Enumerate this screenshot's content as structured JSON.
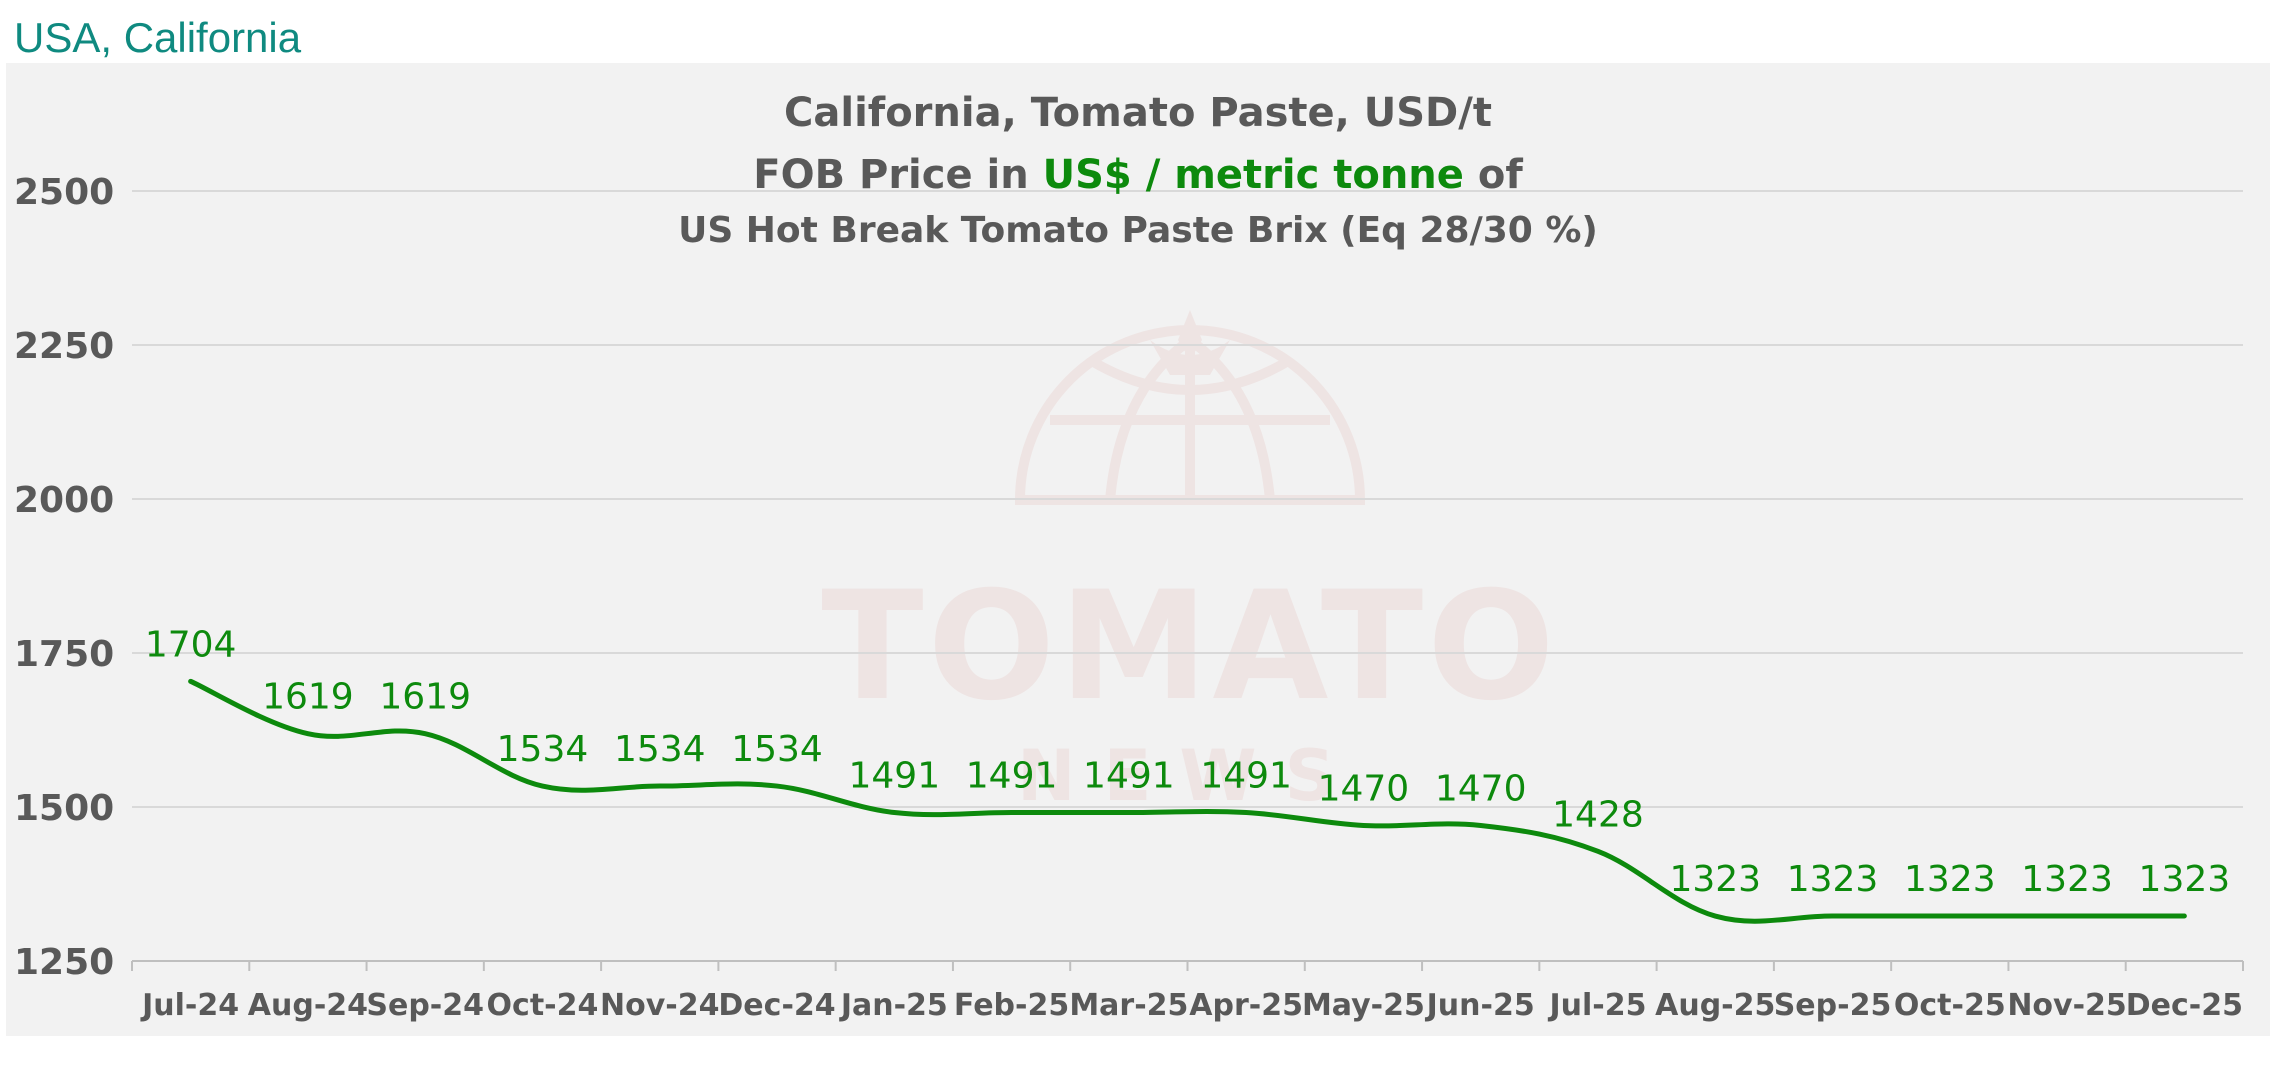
{
  "header": {
    "region": "USA, California"
  },
  "chart_title": {
    "line1": "California, Tomato Paste, USD/t",
    "line2_prefix": "FOB Price in ",
    "line2_highlight": "US$ / metric tonne",
    "line2_suffix": " of",
    "line3": "US Hot Break Tomato Paste Brix (Eq 28/30 %)"
  },
  "watermark": {
    "text_main": "TOMATO",
    "text_sub": "NEWS"
  },
  "colors": {
    "line": "#0d8a0d",
    "label": "#0d8a0d",
    "title_text": "#595959",
    "highlight": "#0d8a0d",
    "region_label": "#0f8a80",
    "grid": "#d9d9d9",
    "panel_bg": "#f2f2f2",
    "tick_text": "#595959"
  },
  "chart_data": {
    "type": "line",
    "title": "California, Tomato Paste, USD/t",
    "xlabel": "",
    "ylabel": "",
    "ylim": [
      1250,
      2500
    ],
    "yticks": [
      1250,
      1500,
      1750,
      2000,
      2250,
      2500
    ],
    "grid": true,
    "legend": "none",
    "smooth": true,
    "categories": [
      "Jul-24",
      "Aug-24",
      "Sep-24",
      "Oct-24",
      "Nov-24",
      "Dec-24",
      "Jan-25",
      "Feb-25",
      "Mar-25",
      "Apr-25",
      "May-25",
      "Jun-25",
      "Jul-25",
      "Aug-25",
      "Sep-25",
      "Oct-25",
      "Nov-25",
      "Dec-25"
    ],
    "series": [
      {
        "values": [
          1704,
          1619,
          1619,
          1534,
          1534,
          1534,
          1491,
          1491,
          1491,
          1491,
          1470,
          1470,
          1428,
          1323,
          1323,
          1323,
          1323,
          1323
        ],
        "data_labels": true
      }
    ]
  }
}
